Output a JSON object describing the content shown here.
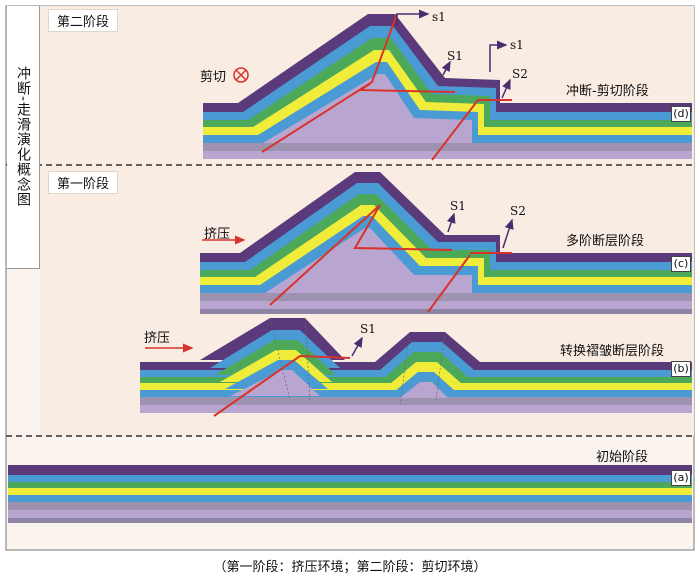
{
  "side_title": "冲断-走滑演化概念图",
  "stage_labels": {
    "stage2": "第二阶段",
    "stage1": "第一阶段"
  },
  "caption": "（第一阶段：挤压环境；第二阶段：剪切环境）",
  "panels": {
    "d": {
      "tag": "(d)",
      "title": "冲断-剪切阶段",
      "shear": "剪切",
      "labels": [
        "s1",
        "S1",
        "s1",
        "S2"
      ]
    },
    "c": {
      "tag": "(c)",
      "title": "多阶断层阶段",
      "compression": "挤压",
      "labels": [
        "S1",
        "S2"
      ]
    },
    "b": {
      "tag": "(b)",
      "title": "转换褶皱断层阶段",
      "compression": "挤压",
      "labels": [
        "S1"
      ]
    },
    "a": {
      "tag": "(a)",
      "title": "初始阶段"
    }
  },
  "colors": {
    "background_upper": "#f8ece3",
    "layer_purple_dark": "#5a3a7a",
    "layer_blue": "#4a9ad4",
    "layer_green": "#4da95a",
    "layer_yellow": "#f0ec3a",
    "layer_lilac": "#b9a6d0",
    "layer_gray": "#9d93b0",
    "fault_red": "#d9322a",
    "arrow_purple": "#4a2d6e"
  }
}
